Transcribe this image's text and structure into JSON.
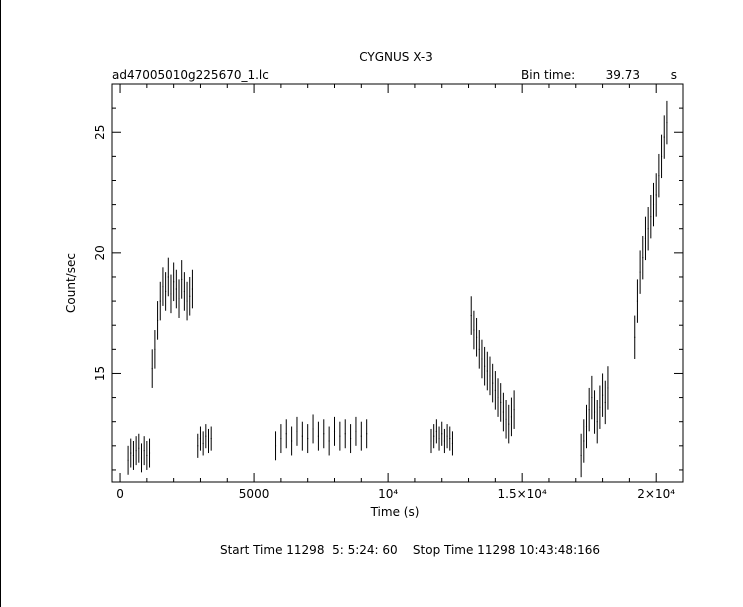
{
  "chart_data": {
    "type": "scatter",
    "title": "CYGNUS X-3",
    "file_label": "ad47005010g225670_1.lc",
    "bin_time_label": "Bin time:",
    "bin_time_value": "39.73",
    "bin_time_unit": "s",
    "xlabel": "Time (s)",
    "ylabel": "Count/sec",
    "xlim": [
      -300,
      21000
    ],
    "ylim": [
      10.5,
      27
    ],
    "x_ticks": [
      {
        "value": 0,
        "label": "0"
      },
      {
        "value": 5000,
        "label": "5000"
      },
      {
        "value": 10000,
        "label": "10⁴"
      },
      {
        "value": 15000,
        "label": "1.5×10⁴"
      },
      {
        "value": 20000,
        "label": "2×10⁴"
      }
    ],
    "y_ticks": [
      {
        "value": 15,
        "label": "15"
      },
      {
        "value": 20,
        "label": "20"
      },
      {
        "value": 25,
        "label": "25"
      }
    ],
    "footer": "Start Time 11298  5: 5:24: 60    Stop Time 11298 10:43:48:166",
    "segments": [
      {
        "x": [
          300,
          400,
          500,
          600,
          700,
          800,
          900,
          1000,
          1100
        ],
        "y": [
          11.4,
          11.7,
          11.6,
          11.8,
          11.9,
          11.5,
          11.8,
          11.6,
          11.7
        ],
        "err": 0.6
      },
      {
        "x": [
          1200,
          1300,
          1400,
          1500,
          1600,
          1700,
          1800,
          1900,
          2000,
          2100,
          2200,
          2300,
          2400,
          2500,
          2600,
          2700
        ],
        "y": [
          15.2,
          16.0,
          17.2,
          18.0,
          18.6,
          18.4,
          19.0,
          18.3,
          18.8,
          18.5,
          18.1,
          18.9,
          18.4,
          18.0,
          18.2,
          18.5
        ],
        "err": 0.8
      },
      {
        "x": [
          2900,
          3000,
          3100,
          3200,
          3300,
          3400
        ],
        "y": [
          12.0,
          12.3,
          12.1,
          12.4,
          12.2,
          12.3
        ],
        "err": 0.5
      },
      {
        "x": [
          5800,
          6000,
          6200,
          6400,
          6600,
          6800,
          7000,
          7200,
          7400,
          7600,
          7800,
          8000,
          8200,
          8400,
          8600,
          8800,
          9000,
          9200
        ],
        "y": [
          12.0,
          12.3,
          12.5,
          12.2,
          12.6,
          12.4,
          12.3,
          12.7,
          12.4,
          12.5,
          12.2,
          12.6,
          12.4,
          12.5,
          12.3,
          12.6,
          12.4,
          12.5
        ],
        "err": 0.6
      },
      {
        "x": [
          11600,
          11700,
          11800,
          11900,
          12000,
          12100,
          12200,
          12300,
          12400
        ],
        "y": [
          12.2,
          12.4,
          12.6,
          12.3,
          12.5,
          12.2,
          12.4,
          12.3,
          12.1
        ],
        "err": 0.5
      },
      {
        "x": [
          13100,
          13200,
          13300,
          13400,
          13500,
          13600,
          13700,
          13800,
          13900,
          14000,
          14100,
          14200,
          14300,
          14400,
          14500,
          14600,
          14700
        ],
        "y": [
          17.4,
          16.8,
          16.5,
          16.0,
          15.6,
          15.3,
          15.1,
          14.9,
          14.6,
          14.3,
          14.0,
          13.8,
          13.4,
          13.1,
          12.9,
          13.2,
          13.5
        ],
        "err": 0.8
      },
      {
        "x": [
          17200,
          17300,
          17400,
          17500,
          17600,
          17700,
          17800,
          17900,
          18000,
          18100,
          18200
        ],
        "y": [
          11.6,
          12.2,
          12.8,
          13.5,
          14.0,
          13.4,
          13.0,
          13.6,
          14.1,
          13.8,
          14.4
        ],
        "err": 0.9
      },
      {
        "x": [
          19200,
          19300,
          19400,
          19500,
          19600,
          19700,
          19800,
          19900,
          20000,
          20100,
          20200,
          20300,
          20400
        ],
        "y": [
          16.5,
          18.0,
          19.2,
          19.8,
          20.6,
          21.0,
          21.5,
          22.0,
          22.4,
          23.2,
          24.0,
          24.8,
          25.4
        ],
        "err": 0.9
      }
    ]
  }
}
